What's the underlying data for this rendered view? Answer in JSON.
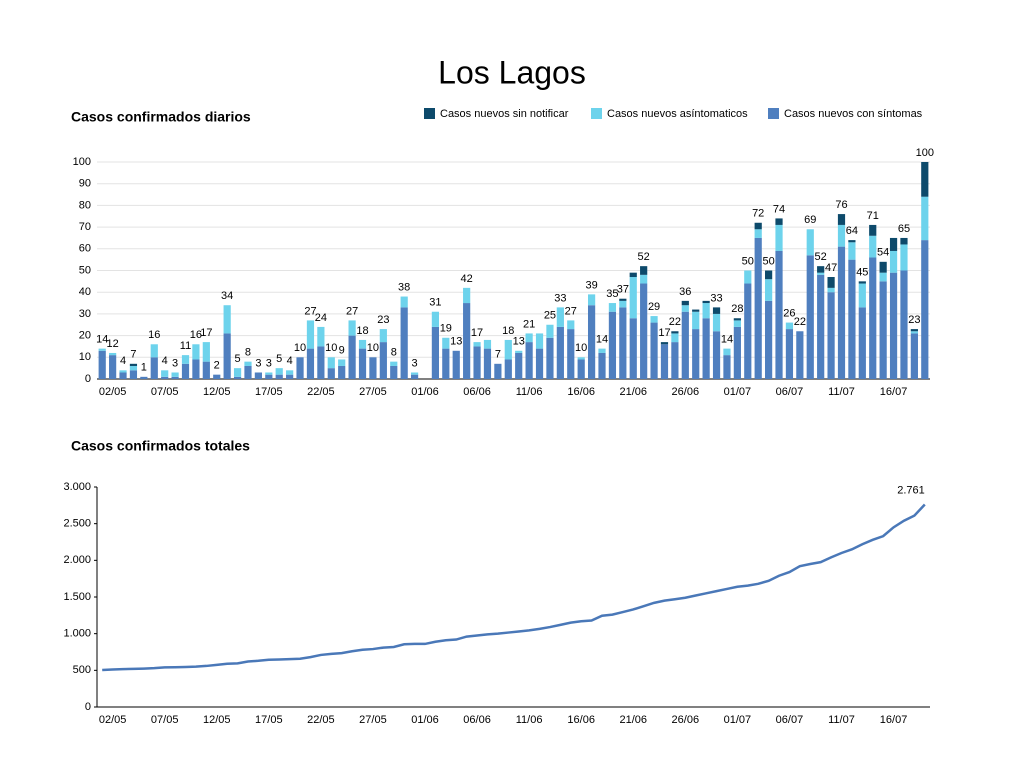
{
  "title": "Los Lagos",
  "chart_data": [
    {
      "type": "bar",
      "stacked": true,
      "title": "Casos confirmados diarios",
      "grid": true,
      "legend": "top-right",
      "categories": [
        null,
        "02/05",
        null,
        null,
        null,
        null,
        "07/05",
        null,
        null,
        null,
        null,
        "12/05",
        null,
        null,
        null,
        null,
        "17/05",
        null,
        null,
        null,
        null,
        "22/05",
        null,
        null,
        null,
        null,
        "27/05",
        null,
        null,
        null,
        null,
        "01/06",
        null,
        null,
        null,
        null,
        "06/06",
        null,
        null,
        null,
        null,
        "11/06",
        null,
        null,
        null,
        null,
        "16/06",
        null,
        null,
        null,
        null,
        "21/06",
        null,
        null,
        null,
        null,
        "26/06",
        null,
        null,
        null,
        null,
        "01/07",
        null,
        null,
        null,
        null,
        "06/07",
        null,
        null,
        null,
        null,
        "11/07",
        null,
        null,
        null,
        null,
        "16/07",
        null,
        null,
        null
      ],
      "ylim": [
        0,
        100
      ],
      "yticks": [
        0,
        10,
        20,
        30,
        40,
        50,
        60,
        70,
        80,
        90,
        100
      ],
      "series": [
        {
          "name": "Casos nuevos sin notificar",
          "color": "#0d4a6b",
          "values": [
            0,
            0,
            0,
            1,
            0,
            0,
            0,
            0,
            0,
            0,
            0,
            0,
            0,
            0,
            0,
            0,
            0,
            0,
            0,
            0,
            0,
            0,
            0,
            0,
            0,
            0,
            0,
            0,
            0,
            0,
            0,
            0,
            0,
            0,
            0,
            0,
            0,
            0,
            0,
            0,
            0,
            0,
            0,
            0,
            0,
            0,
            0,
            0,
            0,
            0,
            1,
            2,
            4,
            0,
            1,
            1,
            2,
            1,
            1,
            3,
            0,
            1,
            0,
            3,
            4,
            3,
            0,
            0,
            0,
            3,
            5,
            5,
            1,
            1,
            5,
            5,
            6,
            3,
            1,
            16
          ]
        },
        {
          "name": "Casos nuevos asíntomaticos",
          "color": "#6dd3ec",
          "values": [
            1,
            1,
            1,
            2,
            0,
            6,
            3,
            2,
            4,
            7,
            9,
            0,
            13,
            4,
            2,
            0,
            1,
            3,
            2,
            0,
            13,
            9,
            5,
            3,
            7,
            4,
            0,
            6,
            2,
            5,
            1,
            0,
            7,
            5,
            0,
            7,
            2,
            4,
            0,
            9,
            1,
            4,
            7,
            6,
            9,
            4,
            1,
            5,
            2,
            4,
            3,
            19,
            4,
            3,
            0,
            4,
            3,
            8,
            7,
            8,
            3,
            3,
            6,
            4,
            10,
            12,
            3,
            0,
            12,
            1,
            2,
            10,
            8,
            11,
            10,
            4,
            10,
            12,
            1,
            20
          ]
        },
        {
          "name": "Casos nuevos con síntomas",
          "color": "#4f7fbf",
          "values": [
            13,
            11,
            3,
            4,
            1,
            10,
            1,
            1,
            7,
            9,
            8,
            2,
            21,
            1,
            6,
            3,
            2,
            2,
            2,
            10,
            14,
            15,
            5,
            6,
            20,
            14,
            10,
            17,
            6,
            33,
            2,
            0,
            24,
            14,
            13,
            35,
            15,
            14,
            7,
            9,
            12,
            17,
            14,
            19,
            24,
            23,
            9,
            34,
            12,
            31,
            33,
            28,
            44,
            26,
            16,
            17,
            31,
            23,
            28,
            22,
            11,
            24,
            44,
            65,
            36,
            59,
            23,
            22,
            57,
            48,
            40,
            61,
            55,
            33,
            56,
            45,
            49,
            50,
            21,
            64
          ]
        }
      ],
      "totals": [
        14,
        12,
        4,
        7,
        1,
        16,
        4,
        3,
        11,
        16,
        17,
        2,
        34,
        5,
        8,
        3,
        3,
        5,
        4,
        10,
        27,
        24,
        10,
        9,
        27,
        18,
        10,
        23,
        8,
        38,
        3,
        null,
        31,
        19,
        13,
        42,
        17,
        null,
        7,
        18,
        13,
        21,
        null,
        25,
        33,
        27,
        10,
        39,
        14,
        35,
        37,
        null,
        52,
        29,
        17,
        22,
        36,
        null,
        null,
        33,
        14,
        28,
        50,
        72,
        50,
        74,
        26,
        22,
        69,
        52,
        47,
        76,
        64,
        45,
        71,
        54,
        null,
        65,
        23,
        100
      ]
    },
    {
      "type": "line",
      "title": "Casos confirmados totales",
      "grid": false,
      "categories": [
        null,
        "02/05",
        null,
        null,
        null,
        null,
        "07/05",
        null,
        null,
        null,
        null,
        "12/05",
        null,
        null,
        null,
        null,
        "17/05",
        null,
        null,
        null,
        null,
        "22/05",
        null,
        null,
        null,
        null,
        "27/05",
        null,
        null,
        null,
        null,
        "01/06",
        null,
        null,
        null,
        null,
        "06/06",
        null,
        null,
        null,
        null,
        "11/06",
        null,
        null,
        null,
        null,
        "16/06",
        null,
        null,
        null,
        null,
        "21/06",
        null,
        null,
        null,
        null,
        "26/06",
        null,
        null,
        null,
        null,
        "01/07",
        null,
        null,
        null,
        null,
        "06/07",
        null,
        null,
        null,
        null,
        "11/07",
        null,
        null,
        null,
        null,
        "16/07",
        null,
        null,
        null
      ],
      "ylim": [
        0,
        3000
      ],
      "yticks": [
        0,
        500,
        {
          "value": 1000,
          "label": "1.000"
        },
        {
          "value": 1500,
          "label": "1.500"
        },
        {
          "value": 2000,
          "label": "2.000"
        },
        {
          "value": 2500,
          "label": "2.500"
        },
        {
          "value": 3000,
          "label": "3.000"
        }
      ],
      "series": [
        {
          "name": "Casos confirmados totales",
          "color": "#4a78b8",
          "values": [
            505,
            512,
            516,
            520,
            524,
            530,
            540,
            542,
            545,
            550,
            560,
            575,
            590,
            595,
            620,
            630,
            645,
            648,
            652,
            658,
            680,
            710,
            725,
            735,
            760,
            780,
            790,
            810,
            818,
            855,
            860,
            860,
            890,
            910,
            920,
            960,
            975,
            990,
            1000,
            1015,
            1030,
            1045,
            1065,
            1090,
            1120,
            1150,
            1170,
            1180,
            1245,
            1260,
            1295,
            1330,
            1375,
            1420,
            1450,
            1470,
            1490,
            1520,
            1550,
            1580,
            1610,
            1640,
            1655,
            1680,
            1720,
            1790,
            1840,
            1920,
            1950,
            1975,
            2040,
            2100,
            2150,
            2220,
            2280,
            2330,
            2450,
            2540,
            2610,
            2761
          ],
          "value_labels": [
            null,
            null,
            null,
            null,
            null,
            null,
            null,
            null,
            null,
            null,
            null,
            null,
            null,
            null,
            null,
            null,
            null,
            null,
            null,
            null,
            null,
            null,
            null,
            null,
            null,
            null,
            null,
            null,
            null,
            null,
            null,
            null,
            null,
            null,
            null,
            null,
            null,
            null,
            null,
            null,
            null,
            null,
            null,
            null,
            null,
            null,
            null,
            null,
            null,
            null,
            null,
            null,
            null,
            null,
            null,
            null,
            null,
            null,
            null,
            null,
            null,
            null,
            null,
            null,
            null,
            null,
            null,
            null,
            null,
            null,
            null,
            null,
            null,
            null,
            null,
            null,
            null,
            null,
            null,
            "2.761"
          ]
        }
      ]
    }
  ]
}
